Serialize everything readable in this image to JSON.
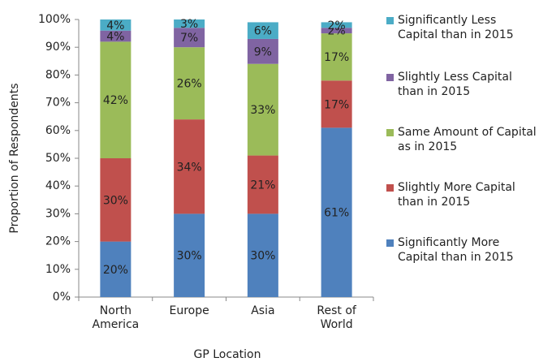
{
  "chart_data": {
    "type": "stacked_bar",
    "y_label": "Proportion of Respondents",
    "x_label": "GP Location",
    "categories": [
      "North America",
      "Europe",
      "Asia",
      "Rest of World"
    ],
    "series": [
      {
        "name": "Significantly More Capital than in 2015",
        "color": "#4f81bd",
        "values": [
          20,
          30,
          30,
          61
        ],
        "value_labels": [
          "20%",
          "30%",
          "30%",
          "61%"
        ]
      },
      {
        "name": "Slightly More Capital than in 2015",
        "color": "#c0504d",
        "values": [
          30,
          34,
          21,
          17
        ],
        "value_labels": [
          "30%",
          "34%",
          "21%",
          "17%"
        ]
      },
      {
        "name": "Same Amount of Capital as in 2015",
        "color": "#9bbb59",
        "values": [
          42,
          26,
          33,
          17
        ],
        "value_labels": [
          "42%",
          "26%",
          "33%",
          "17%"
        ]
      },
      {
        "name": "Slightly Less Capital than in 2015",
        "color": "#8064a2",
        "values": [
          4,
          7,
          9,
          2
        ],
        "value_labels": [
          "4%",
          "7%",
          "9%",
          "2%"
        ]
      },
      {
        "name": "Significantly Less Capital than in 2015",
        "color": "#4bacc6",
        "values": [
          4,
          3,
          6,
          2
        ],
        "value_labels": [
          "4%",
          "3%",
          "6%",
          "2%"
        ]
      }
    ],
    "ylim": [
      0,
      100
    ],
    "yticks": [
      {
        "value": 0,
        "label": "0%"
      },
      {
        "value": 10,
        "label": "10%"
      },
      {
        "value": 20,
        "label": "20%"
      },
      {
        "value": 30,
        "label": "30%"
      },
      {
        "value": 40,
        "label": "40%"
      },
      {
        "value": 50,
        "label": "50%"
      },
      {
        "value": 60,
        "label": "60%"
      },
      {
        "value": 70,
        "label": "70%"
      },
      {
        "value": 80,
        "label": "80%"
      },
      {
        "value": 90,
        "label": "90%"
      },
      {
        "value": 100,
        "label": "100%"
      }
    ],
    "grid": false,
    "legend": "right"
  }
}
